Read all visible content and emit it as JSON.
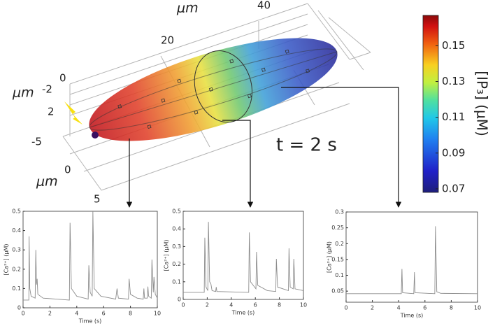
{
  "scene": {
    "time_label": "t = 2 s",
    "axis_unit_labels": [
      "μm",
      "μm",
      "μm"
    ],
    "length_ticks": [
      0,
      20,
      40
    ],
    "width_ticks": [
      -2,
      2
    ],
    "depth_ticks": [
      -5,
      0,
      5
    ]
  },
  "colorbar": {
    "label": "[IP₃] (μM)",
    "clim": [
      0.068,
      0.167
    ],
    "ticks": [
      0.07,
      0.09,
      0.11,
      0.13,
      0.15
    ]
  },
  "chart_data": [
    {
      "type": "line",
      "xlabel": "Time (s)",
      "ylabel": "[Ca²⁺] (μM)",
      "color": "#8c8c8c",
      "xlim": [
        0,
        10
      ],
      "xticks": [
        0,
        2,
        4,
        6,
        8,
        10
      ],
      "ylim": [
        0,
        0.5
      ],
      "yticks": [
        0,
        0.1,
        0.2,
        0.3,
        0.4,
        0.5
      ],
      "x": [
        0,
        0.43,
        0.45,
        0.5,
        0.55,
        0.6,
        0.9,
        0.95,
        1.0,
        1.05,
        1.1,
        1.5,
        2.5,
        3.45,
        3.5,
        3.6,
        4.0,
        4.85,
        4.9,
        5.0,
        5.15,
        5.2,
        5.3,
        5.8,
        6.9,
        7.0,
        7.1,
        7.85,
        7.9,
        8.0,
        8.5,
        8.95,
        9.0,
        9.05,
        9.25,
        9.3,
        9.35,
        9.55,
        9.6,
        9.7,
        9.75,
        9.85,
        10
      ],
      "values": [
        0.04,
        0.04,
        0.37,
        0.1,
        0.08,
        0.06,
        0.05,
        0.3,
        0.12,
        0.15,
        0.07,
        0.05,
        0.045,
        0.04,
        0.44,
        0.1,
        0.06,
        0.045,
        0.22,
        0.08,
        0.06,
        0.5,
        0.1,
        0.06,
        0.045,
        0.1,
        0.05,
        0.045,
        0.15,
        0.07,
        0.05,
        0.045,
        0.1,
        0.05,
        0.05,
        0.11,
        0.06,
        0.05,
        0.25,
        0.08,
        0.16,
        0.07,
        0.05
      ]
    },
    {
      "type": "line",
      "xlabel": "Time (s)",
      "ylabel": "[Ca²⁺] (μM)",
      "color": "#8c8c8c",
      "xlim": [
        0,
        10
      ],
      "xticks": [
        0,
        2,
        4,
        6,
        8,
        10
      ],
      "ylim": [
        0,
        0.5
      ],
      "yticks": [
        0,
        0.1,
        0.2,
        0.3,
        0.4,
        0.5
      ],
      "x": [
        0,
        1.75,
        1.8,
        1.9,
        2.05,
        2.1,
        2.2,
        2.3,
        2.4,
        2.7,
        2.75,
        2.8,
        5.45,
        5.5,
        5.6,
        6.05,
        6.1,
        6.2,
        7.0,
        7.7,
        7.75,
        7.85,
        8.75,
        8.8,
        8.9,
        9.15,
        9.2,
        9.3,
        10
      ],
      "values": [
        0.04,
        0.04,
        0.35,
        0.07,
        0.05,
        0.44,
        0.1,
        0.09,
        0.05,
        0.045,
        0.07,
        0.045,
        0.04,
        0.38,
        0.1,
        0.06,
        0.27,
        0.08,
        0.05,
        0.045,
        0.23,
        0.07,
        0.05,
        0.29,
        0.07,
        0.06,
        0.23,
        0.06,
        0.05
      ]
    },
    {
      "type": "line",
      "xlabel": "Time (s)",
      "ylabel": "[Ca²⁺] (μM)",
      "color": "#8c8c8c",
      "xlim": [
        0,
        10
      ],
      "xticks": [
        0,
        2,
        4,
        6,
        8,
        10
      ],
      "ylim": [
        0.015,
        0.3
      ],
      "yticks": [
        0.05,
        0.1,
        0.15,
        0.2,
        0.25,
        0.3
      ],
      "x": [
        0,
        4.2,
        4.25,
        4.3,
        5.15,
        5.2,
        5.25,
        6.75,
        6.8,
        6.9,
        7.2,
        10
      ],
      "values": [
        0.042,
        0.042,
        0.12,
        0.045,
        0.042,
        0.11,
        0.045,
        0.042,
        0.255,
        0.048,
        0.043,
        0.042
      ]
    }
  ]
}
